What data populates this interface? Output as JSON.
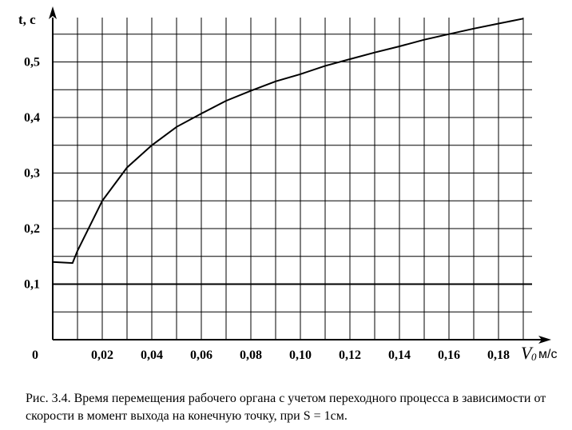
{
  "chart_data": {
    "type": "line",
    "xlabel": {
      "symbol": "V",
      "subscript": "0",
      "unit": "м/с"
    },
    "ylabel": "t, с",
    "origin_label": "0",
    "x_ticks": [
      "0,02",
      "0,04",
      "0,06",
      "0,08",
      "0,10",
      "0,12",
      "0,14",
      "0,16",
      "0,18"
    ],
    "y_ticks": [
      "0,1",
      "0,2",
      "0,3",
      "0,4",
      "0,5"
    ],
    "xlim": [
      0,
      0.195
    ],
    "ylim": [
      0,
      0.58
    ],
    "grid": true,
    "reference_line": {
      "y": 0.1
    },
    "series": [
      {
        "x": [
          0.0,
          0.008,
          0.01,
          0.02,
          0.03,
          0.04,
          0.05,
          0.06,
          0.07,
          0.08,
          0.09,
          0.1,
          0.11,
          0.12,
          0.13,
          0.14,
          0.15,
          0.16,
          0.17,
          0.18,
          0.19
        ],
        "y": [
          0.14,
          0.138,
          0.16,
          0.25,
          0.31,
          0.35,
          0.383,
          0.407,
          0.43,
          0.448,
          0.465,
          0.478,
          0.493,
          0.505,
          0.517,
          0.528,
          0.54,
          0.55,
          0.56,
          0.569,
          0.578
        ]
      }
    ]
  },
  "caption": "Рис. 3.4. Время перемещения рабочего органа с учетом переходного процесса в зависимости от скорости в момент выхода на конечную точку, при S = 1см."
}
